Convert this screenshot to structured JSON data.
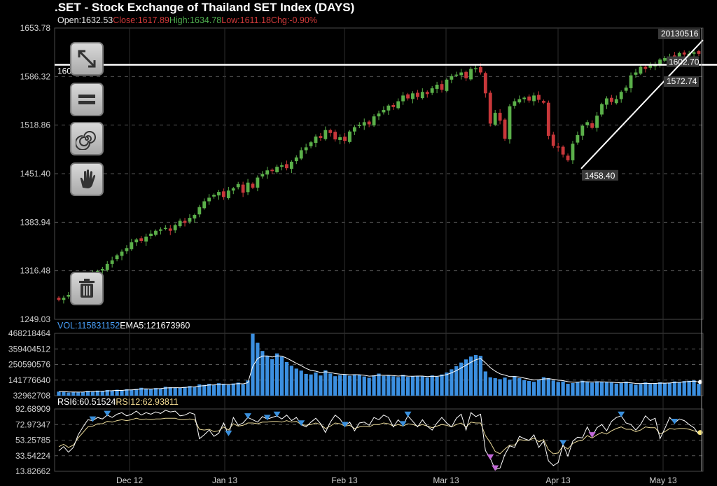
{
  "header": {
    "title": ".SET - Stock Exchange of Thailand SET Index (DAYS)",
    "open_label": "Open:",
    "open": "1632.53",
    "close_label": "Close:",
    "close": "1617.89",
    "high_label": "High:",
    "high": "1634.78",
    "low_label": "Low:",
    "low": "1611.18",
    "chg_label": "Chg:",
    "chg": "-0.90%"
  },
  "volume_header": {
    "vol_label": "VOL:",
    "vol": "115831152",
    "ema_label": "EMA5:",
    "ema": "121673960"
  },
  "rsi_header": {
    "rsi6_label": "RSI6:",
    "rsi6": "60.51524",
    "rsi12_label": "RSI12:",
    "rsi12": "62.93811"
  },
  "annotations": {
    "hline_value": "1602.70",
    "hline_value_right": "1602.70",
    "date_tag": "20130516",
    "trend_low": "1458.40",
    "trend_mid": "1572.74"
  },
  "tools": [
    {
      "name": "diagonal-line-tool",
      "icon": "diagonal-arrow-icon"
    },
    {
      "name": "horizontal-line-tool",
      "icon": "parallel-lines-icon"
    },
    {
      "name": "fibonacci-tool",
      "icon": "spiral-icon"
    },
    {
      "name": "pan-tool",
      "icon": "hand-icon"
    },
    {
      "name": "delete-tool",
      "icon": "trash-icon"
    }
  ],
  "colors": {
    "up": "#5bb04a",
    "down": "#c8373a",
    "volume": "#3b8fe0",
    "rsi6": "#ffffff",
    "rsi12": "#e8d898",
    "grid": "#555555"
  },
  "chart_data": [
    {
      "type": "candlestick",
      "ylim": [
        1249.03,
        1653.78
      ],
      "yticks": [
        "1653.78",
        "1586.32",
        "1518.86",
        "1451.40",
        "1383.94",
        "1316.48",
        "1249.03"
      ],
      "xticks": [
        "Dec 12",
        "Jan 13",
        "Feb 13",
        "Mar 13",
        "Apr 13",
        "May 13"
      ],
      "close": [
        1276,
        1279,
        1283,
        1288,
        1286,
        1292,
        1305,
        1312,
        1316,
        1319,
        1326,
        1331,
        1338,
        1343,
        1348,
        1356,
        1360,
        1358,
        1364,
        1368,
        1372,
        1374,
        1376,
        1372,
        1380,
        1386,
        1383,
        1390,
        1394,
        1405,
        1413,
        1418,
        1422,
        1426,
        1419,
        1428,
        1431,
        1437,
        1425,
        1439,
        1432,
        1446,
        1451,
        1456,
        1455,
        1461,
        1463,
        1459,
        1468,
        1474,
        1484,
        1488,
        1495,
        1503,
        1501,
        1512,
        1508,
        1499,
        1502,
        1497,
        1510,
        1516,
        1519,
        1523,
        1520,
        1531,
        1535,
        1540,
        1546,
        1544,
        1552,
        1560,
        1556,
        1563,
        1558,
        1565,
        1562,
        1570,
        1575,
        1568,
        1582,
        1587,
        1589,
        1592,
        1584,
        1597,
        1598,
        1592,
        1563,
        1521,
        1536,
        1525,
        1500,
        1545,
        1552,
        1555,
        1557,
        1553,
        1560,
        1554,
        1550,
        1504,
        1490,
        1488,
        1478,
        1470,
        1493,
        1505,
        1518,
        1523,
        1515,
        1532,
        1548,
        1556,
        1551,
        1555,
        1565,
        1571,
        1588,
        1592,
        1600,
        1597,
        1602,
        1602,
        1610,
        1612,
        1614,
        1615,
        1619,
        1617,
        1618,
        1620,
        1617.89
      ],
      "volume": [
        61,
        62,
        55,
        58,
        56,
        60,
        66,
        63,
        68,
        65,
        72,
        70,
        74,
        69,
        78,
        76,
        80,
        88,
        82,
        77,
        86,
        84,
        95,
        92,
        90,
        87,
        94,
        100,
        96,
        112,
        108,
        116,
        110,
        120,
        115,
        108,
        118,
        124,
        112,
        139,
        465,
        402,
        345,
        312,
        288,
        328,
        305,
        268,
        242,
        222,
        208,
        185,
        181,
        195,
        174,
        210,
        188,
        169,
        176,
        179,
        172,
        182,
        178,
        167,
        158,
        175,
        187,
        171,
        176,
        169,
        163,
        178,
        164,
        168,
        172,
        169,
        160,
        174,
        166,
        181,
        195,
        217,
        239,
        264,
        286,
        306,
        317,
        311,
        202,
        161,
        155,
        148,
        159,
        145,
        169,
        155,
        141,
        136,
        130,
        146,
        162,
        155,
        139,
        129,
        132,
        116,
        121,
        127,
        137,
        130,
        124,
        133,
        128,
        127,
        125,
        117,
        121,
        131,
        118,
        110,
        114,
        125,
        115,
        120,
        126,
        119,
        124,
        132,
        128,
        135,
        137,
        140,
        115.83
      ],
      "rsi6": [
        40,
        45,
        38,
        44,
        60,
        70,
        79,
        78,
        82,
        80,
        85,
        82,
        86,
        88,
        84,
        86,
        90,
        85,
        88,
        86,
        89,
        87,
        91,
        89,
        90,
        84,
        85,
        88,
        86,
        55,
        60,
        66,
        58,
        62,
        75,
        60,
        82,
        72,
        75,
        82,
        79,
        76,
        83,
        80,
        82,
        84,
        80,
        85,
        78,
        82,
        73,
        70,
        76,
        81,
        74,
        63,
        76,
        85,
        80,
        71,
        76,
        65,
        75,
        76,
        72,
        82,
        79,
        85,
        82,
        70,
        79,
        72,
        84,
        77,
        70,
        79,
        71,
        66,
        75,
        82,
        75,
        70,
        81,
        86,
        66,
        88,
        83,
        86,
        40,
        30,
        16,
        18,
        35,
        46,
        44,
        58,
        55,
        53,
        60,
        44,
        52,
        27,
        21,
        25,
        48,
        33,
        52,
        57,
        56,
        70,
        58,
        69,
        73,
        65,
        77,
        82,
        84,
        75,
        73,
        66,
        73,
        84,
        78,
        81,
        55,
        68,
        82,
        75,
        80,
        78,
        73,
        69,
        60.5
      ],
      "rsi12": [
        45,
        48,
        44,
        47,
        56,
        63,
        70,
        71,
        74,
        74,
        77,
        76,
        78,
        79,
        78,
        79,
        81,
        79,
        80,
        79,
        80,
        80,
        81,
        81,
        81,
        79,
        79,
        80,
        79,
        67,
        66,
        67,
        64,
        65,
        70,
        66,
        74,
        71,
        72,
        75,
        75,
        74,
        76,
        76,
        77,
        77,
        76,
        78,
        76,
        77,
        73,
        72,
        73,
        75,
        73,
        68,
        71,
        75,
        74,
        71,
        72,
        68,
        70,
        71,
        70,
        73,
        73,
        75,
        74,
        71,
        73,
        71,
        74,
        73,
        71,
        73,
        71,
        69,
        71,
        73,
        72,
        70,
        73,
        75,
        70,
        76,
        75,
        75,
        59,
        50,
        39,
        36,
        42,
        47,
        47,
        54,
        53,
        53,
        56,
        51,
        54,
        41,
        36,
        37,
        46,
        42,
        49,
        52,
        53,
        59,
        56,
        60,
        63,
        61,
        65,
        68,
        70,
        67,
        67,
        64,
        66,
        70,
        69,
        69,
        61,
        64,
        68,
        67,
        68,
        68,
        67,
        65,
        62.9
      ],
      "yticks_volume": [
        "468218464",
        "359404512",
        "250590576",
        "141776640",
        "32962708"
      ],
      "yticks_rsi": [
        "92.68909",
        "72.97347",
        "53.25785",
        "33.54224",
        "13.82662"
      ]
    }
  ]
}
